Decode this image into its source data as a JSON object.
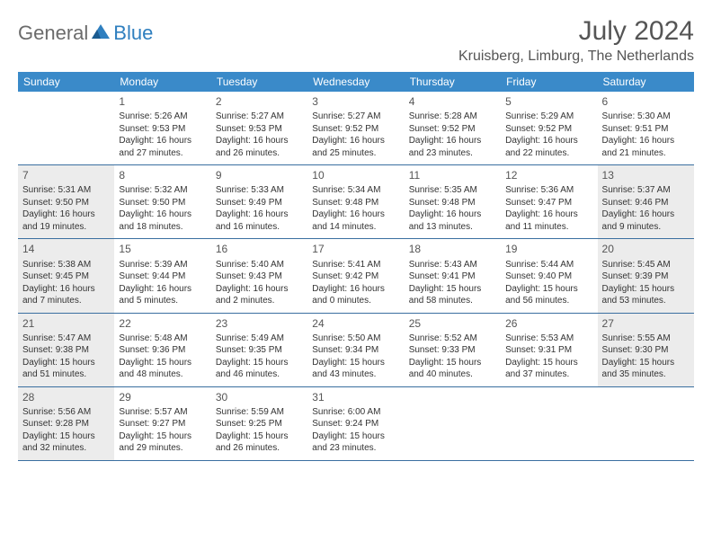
{
  "brand": {
    "text1": "General",
    "text2": "Blue"
  },
  "title": "July 2024",
  "location": "Kruisberg, Limburg, The Netherlands",
  "colors": {
    "header_bg": "#3a8ac9",
    "header_text": "#ffffff",
    "row_border": "#3a6fa0",
    "shaded_bg": "#ececec",
    "body_text": "#333333",
    "title_text": "#555555",
    "logo_gray": "#6b6b6b",
    "logo_blue": "#2f7fbf"
  },
  "weekdays": [
    "Sunday",
    "Monday",
    "Tuesday",
    "Wednesday",
    "Thursday",
    "Friday",
    "Saturday"
  ],
  "weeks": [
    [
      {
        "n": "",
        "lines": [],
        "shaded": false
      },
      {
        "n": "1",
        "lines": [
          "Sunrise: 5:26 AM",
          "Sunset: 9:53 PM",
          "Daylight: 16 hours",
          "and 27 minutes."
        ],
        "shaded": false
      },
      {
        "n": "2",
        "lines": [
          "Sunrise: 5:27 AM",
          "Sunset: 9:53 PM",
          "Daylight: 16 hours",
          "and 26 minutes."
        ],
        "shaded": false
      },
      {
        "n": "3",
        "lines": [
          "Sunrise: 5:27 AM",
          "Sunset: 9:52 PM",
          "Daylight: 16 hours",
          "and 25 minutes."
        ],
        "shaded": false
      },
      {
        "n": "4",
        "lines": [
          "Sunrise: 5:28 AM",
          "Sunset: 9:52 PM",
          "Daylight: 16 hours",
          "and 23 minutes."
        ],
        "shaded": false
      },
      {
        "n": "5",
        "lines": [
          "Sunrise: 5:29 AM",
          "Sunset: 9:52 PM",
          "Daylight: 16 hours",
          "and 22 minutes."
        ],
        "shaded": false
      },
      {
        "n": "6",
        "lines": [
          "Sunrise: 5:30 AM",
          "Sunset: 9:51 PM",
          "Daylight: 16 hours",
          "and 21 minutes."
        ],
        "shaded": false
      }
    ],
    [
      {
        "n": "7",
        "lines": [
          "Sunrise: 5:31 AM",
          "Sunset: 9:50 PM",
          "Daylight: 16 hours",
          "and 19 minutes."
        ],
        "shaded": true
      },
      {
        "n": "8",
        "lines": [
          "Sunrise: 5:32 AM",
          "Sunset: 9:50 PM",
          "Daylight: 16 hours",
          "and 18 minutes."
        ],
        "shaded": false
      },
      {
        "n": "9",
        "lines": [
          "Sunrise: 5:33 AM",
          "Sunset: 9:49 PM",
          "Daylight: 16 hours",
          "and 16 minutes."
        ],
        "shaded": false
      },
      {
        "n": "10",
        "lines": [
          "Sunrise: 5:34 AM",
          "Sunset: 9:48 PM",
          "Daylight: 16 hours",
          "and 14 minutes."
        ],
        "shaded": false
      },
      {
        "n": "11",
        "lines": [
          "Sunrise: 5:35 AM",
          "Sunset: 9:48 PM",
          "Daylight: 16 hours",
          "and 13 minutes."
        ],
        "shaded": false
      },
      {
        "n": "12",
        "lines": [
          "Sunrise: 5:36 AM",
          "Sunset: 9:47 PM",
          "Daylight: 16 hours",
          "and 11 minutes."
        ],
        "shaded": false
      },
      {
        "n": "13",
        "lines": [
          "Sunrise: 5:37 AM",
          "Sunset: 9:46 PM",
          "Daylight: 16 hours",
          "and 9 minutes."
        ],
        "shaded": true
      }
    ],
    [
      {
        "n": "14",
        "lines": [
          "Sunrise: 5:38 AM",
          "Sunset: 9:45 PM",
          "Daylight: 16 hours",
          "and 7 minutes."
        ],
        "shaded": true
      },
      {
        "n": "15",
        "lines": [
          "Sunrise: 5:39 AM",
          "Sunset: 9:44 PM",
          "Daylight: 16 hours",
          "and 5 minutes."
        ],
        "shaded": false
      },
      {
        "n": "16",
        "lines": [
          "Sunrise: 5:40 AM",
          "Sunset: 9:43 PM",
          "Daylight: 16 hours",
          "and 2 minutes."
        ],
        "shaded": false
      },
      {
        "n": "17",
        "lines": [
          "Sunrise: 5:41 AM",
          "Sunset: 9:42 PM",
          "Daylight: 16 hours",
          "and 0 minutes."
        ],
        "shaded": false
      },
      {
        "n": "18",
        "lines": [
          "Sunrise: 5:43 AM",
          "Sunset: 9:41 PM",
          "Daylight: 15 hours",
          "and 58 minutes."
        ],
        "shaded": false
      },
      {
        "n": "19",
        "lines": [
          "Sunrise: 5:44 AM",
          "Sunset: 9:40 PM",
          "Daylight: 15 hours",
          "and 56 minutes."
        ],
        "shaded": false
      },
      {
        "n": "20",
        "lines": [
          "Sunrise: 5:45 AM",
          "Sunset: 9:39 PM",
          "Daylight: 15 hours",
          "and 53 minutes."
        ],
        "shaded": true
      }
    ],
    [
      {
        "n": "21",
        "lines": [
          "Sunrise: 5:47 AM",
          "Sunset: 9:38 PM",
          "Daylight: 15 hours",
          "and 51 minutes."
        ],
        "shaded": true
      },
      {
        "n": "22",
        "lines": [
          "Sunrise: 5:48 AM",
          "Sunset: 9:36 PM",
          "Daylight: 15 hours",
          "and 48 minutes."
        ],
        "shaded": false
      },
      {
        "n": "23",
        "lines": [
          "Sunrise: 5:49 AM",
          "Sunset: 9:35 PM",
          "Daylight: 15 hours",
          "and 46 minutes."
        ],
        "shaded": false
      },
      {
        "n": "24",
        "lines": [
          "Sunrise: 5:50 AM",
          "Sunset: 9:34 PM",
          "Daylight: 15 hours",
          "and 43 minutes."
        ],
        "shaded": false
      },
      {
        "n": "25",
        "lines": [
          "Sunrise: 5:52 AM",
          "Sunset: 9:33 PM",
          "Daylight: 15 hours",
          "and 40 minutes."
        ],
        "shaded": false
      },
      {
        "n": "26",
        "lines": [
          "Sunrise: 5:53 AM",
          "Sunset: 9:31 PM",
          "Daylight: 15 hours",
          "and 37 minutes."
        ],
        "shaded": false
      },
      {
        "n": "27",
        "lines": [
          "Sunrise: 5:55 AM",
          "Sunset: 9:30 PM",
          "Daylight: 15 hours",
          "and 35 minutes."
        ],
        "shaded": true
      }
    ],
    [
      {
        "n": "28",
        "lines": [
          "Sunrise: 5:56 AM",
          "Sunset: 9:28 PM",
          "Daylight: 15 hours",
          "and 32 minutes."
        ],
        "shaded": true
      },
      {
        "n": "29",
        "lines": [
          "Sunrise: 5:57 AM",
          "Sunset: 9:27 PM",
          "Daylight: 15 hours",
          "and 29 minutes."
        ],
        "shaded": false
      },
      {
        "n": "30",
        "lines": [
          "Sunrise: 5:59 AM",
          "Sunset: 9:25 PM",
          "Daylight: 15 hours",
          "and 26 minutes."
        ],
        "shaded": false
      },
      {
        "n": "31",
        "lines": [
          "Sunrise: 6:00 AM",
          "Sunset: 9:24 PM",
          "Daylight: 15 hours",
          "and 23 minutes."
        ],
        "shaded": false
      },
      {
        "n": "",
        "lines": [],
        "shaded": false
      },
      {
        "n": "",
        "lines": [],
        "shaded": false
      },
      {
        "n": "",
        "lines": [],
        "shaded": false
      }
    ]
  ]
}
